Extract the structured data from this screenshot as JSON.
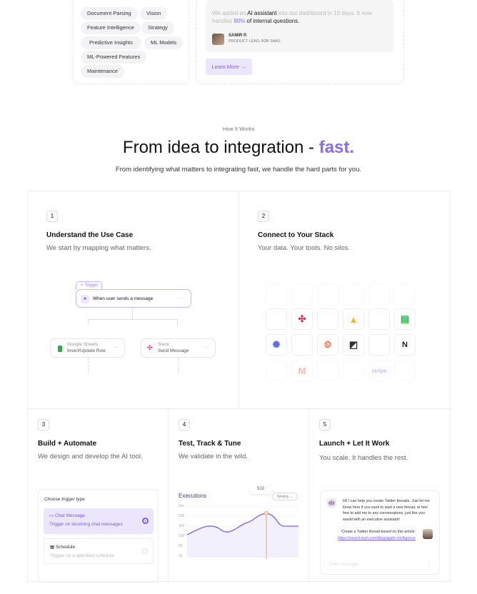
{
  "capabilities": {
    "tags": [
      "Document Parsing",
      "Vision",
      "Feature Intelligence",
      "Strategy",
      "Predictive Insights",
      "ML Models",
      "ML-Powered Features",
      "Maintenance"
    ]
  },
  "testimonial": {
    "quote_pre": "We added an ",
    "quote_em": "AI assistant",
    "quote_mid": " into our dashboard in 10 days. It now handles ",
    "quote_pct": "80%",
    "quote_post": " of internal questions.",
    "name": "SAMIR P.",
    "role": "PRODUCT LEAD, B2B SAAS",
    "cta": "Learn More →"
  },
  "section": {
    "eyebrow": "How It Works",
    "title": "From idea to integration - ",
    "title_accent": "fast.",
    "subtitle": "From identifying what matters to integrating fast, we handle the hard parts for you."
  },
  "steps": [
    {
      "num": "1",
      "title": "Understand the Use Case",
      "desc": "We start by mapping what matters."
    },
    {
      "num": "2",
      "title": "Connect to Your Stack",
      "desc": "Your data. Your tools. No silos."
    },
    {
      "num": "3",
      "title": "Build + Automate",
      "desc": "We design and develop the AI tool."
    },
    {
      "num": "4",
      "title": "Test, Track & Tune",
      "desc": "We validate in the wild."
    },
    {
      "num": "5",
      "title": "Launch + Let It Work",
      "desc": "You scale. It handles the rest."
    }
  ],
  "workflow": {
    "trigger_label": "Trigger",
    "trigger_text": "When user sends a message",
    "node1_app": "Google Sheets",
    "node1_action": "Insert/Update Row",
    "node2_app": "Slack",
    "node2_action": "Send Message",
    "more": "···"
  },
  "integrations": {
    "stripe": "stripe"
  },
  "trigger_picker": {
    "heading": "Choose trigger type",
    "options": [
      {
        "title": "Chat Message",
        "desc": "Trigger on incoming chat messages",
        "selected": true
      },
      {
        "title": "Schedule",
        "desc": "Trigger on a specified schedule",
        "selected": false
      }
    ]
  },
  "executions": {
    "title": "Executions",
    "period": "Weekly ⌄",
    "tooltip": "510",
    "y_ticks": [
      "1k+",
      "500",
      "150",
      "100",
      "50",
      "10"
    ]
  },
  "chat": {
    "bot_message": "Hi! I can help you create Twitter threads. Just let me know here if you want to start a new thread, or feel free to add me to any conversations, just like you would with an executive assistant!",
    "user_message": "Create a Twitter thread based on this article:",
    "user_link": "https://www.k-tech.com/blog/apple-intelligence",
    "input_placeholder": "Enter message..."
  },
  "colors": {
    "accent": "#7c5cf0",
    "accent_bg": "#ece6fd"
  }
}
